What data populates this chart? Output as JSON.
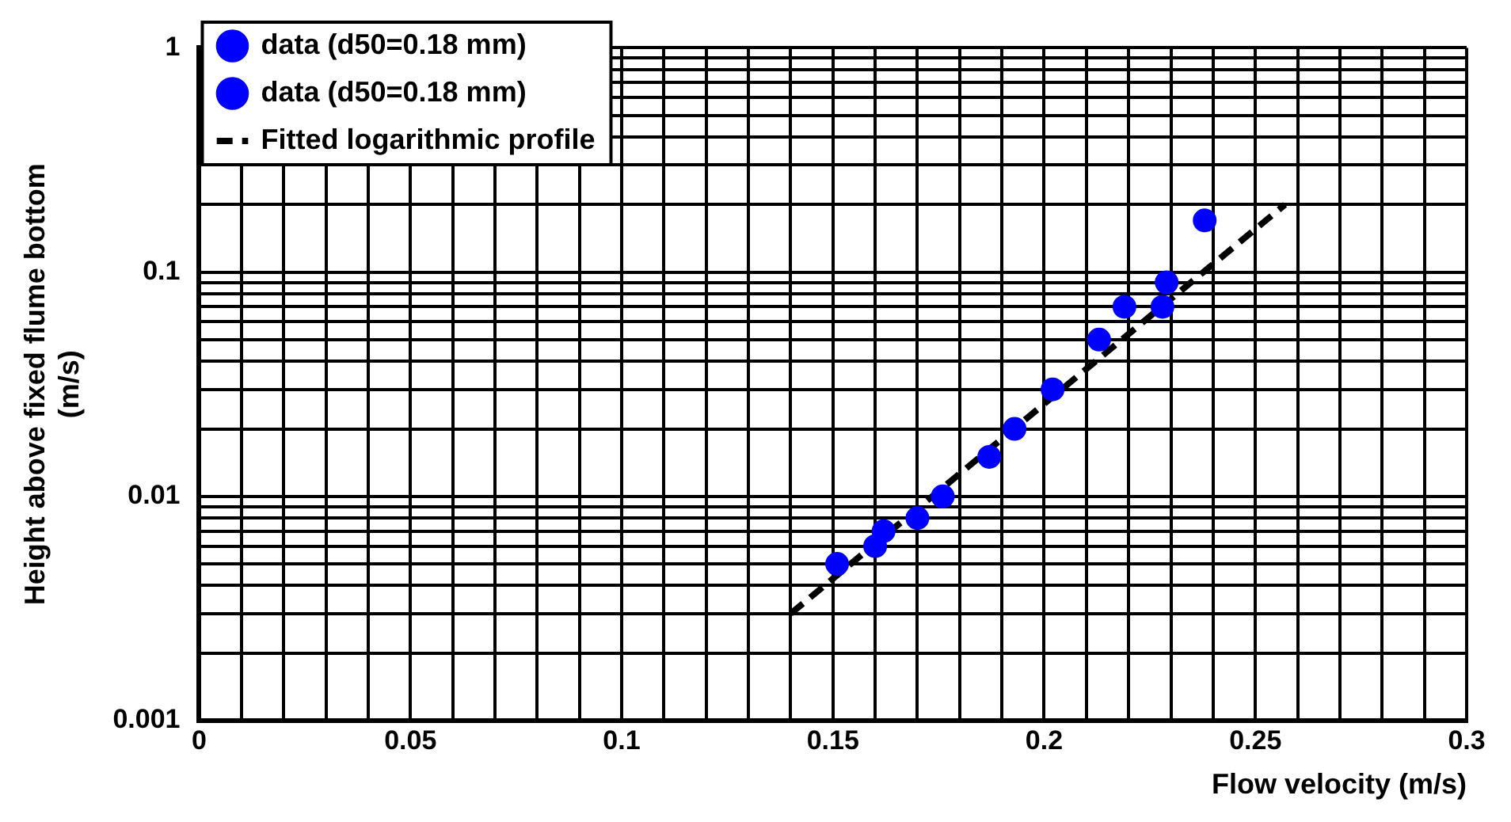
{
  "chart_data": {
    "type": "scatter",
    "xlabel": "Flow velocity (m/s)",
    "ylabel": "Height above fixed flume bottom (m/s)",
    "xlim": [
      0,
      0.3
    ],
    "ylim": [
      0.001,
      1
    ],
    "log": "y",
    "grid": true,
    "legend": "top left",
    "marker": "circle",
    "xticks": [
      0,
      {
        "value": 0.01,
        "label": null
      },
      {
        "value": 0.02,
        "label": null
      },
      {
        "value": 0.03,
        "label": null
      },
      {
        "value": 0.04,
        "label": null
      },
      0.05,
      {
        "value": 0.06,
        "label": null
      },
      {
        "value": 0.07,
        "label": null
      },
      {
        "value": 0.08,
        "label": null
      },
      {
        "value": 0.09,
        "label": null
      },
      0.1,
      {
        "value": 0.11,
        "label": null
      },
      {
        "value": 0.12,
        "label": null
      },
      {
        "value": 0.13,
        "label": null
      },
      {
        "value": 0.14,
        "label": null
      },
      0.15,
      {
        "value": 0.16,
        "label": null
      },
      {
        "value": 0.17,
        "label": null
      },
      {
        "value": 0.18,
        "label": null
      },
      {
        "value": 0.19,
        "label": null
      },
      0.2,
      {
        "value": 0.21,
        "label": null
      },
      {
        "value": 0.22,
        "label": null
      },
      {
        "value": 0.23,
        "label": null
      },
      {
        "value": 0.24,
        "label": null
      },
      0.25,
      {
        "value": 0.26,
        "label": null
      },
      {
        "value": 0.27,
        "label": null
      },
      {
        "value": 0.28,
        "label": null
      },
      {
        "value": 0.29,
        "label": null
      },
      0.3
    ],
    "yticks": [
      0.001,
      {
        "value": 0.002,
        "label": null
      },
      {
        "value": 0.003,
        "label": null
      },
      {
        "value": 0.004,
        "label": null
      },
      {
        "value": 0.005,
        "label": null
      },
      {
        "value": 0.006,
        "label": null
      },
      {
        "value": 0.007,
        "label": null
      },
      {
        "value": 0.008,
        "label": null
      },
      {
        "value": 0.009,
        "label": null
      },
      0.01,
      {
        "value": 0.02,
        "label": null
      },
      {
        "value": 0.03,
        "label": null
      },
      {
        "value": 0.04,
        "label": null
      },
      {
        "value": 0.05,
        "label": null
      },
      {
        "value": 0.06,
        "label": null
      },
      {
        "value": 0.07,
        "label": null
      },
      {
        "value": 0.08,
        "label": null
      },
      {
        "value": 0.09,
        "label": null
      },
      0.1,
      {
        "value": 0.2,
        "label": null
      },
      {
        "value": 0.3,
        "label": null
      },
      {
        "value": 0.4,
        "label": null
      },
      {
        "value": 0.5,
        "label": null
      },
      {
        "value": 0.6,
        "label": null
      },
      {
        "value": 0.7,
        "label": null
      },
      {
        "value": 0.8,
        "label": null
      },
      {
        "value": 0.9,
        "label": null
      },
      1
    ],
    "series": [
      {
        "name": "data (d50=0.18 mm)",
        "color": "#0000ff",
        "x": [
          0.151,
          0.16,
          0.162,
          0.17,
          0.176,
          0.187,
          0.193,
          0.202,
          0.228
        ],
        "values": [
          0.005,
          0.006,
          0.007,
          0.008,
          0.01,
          0.015,
          0.02,
          0.03,
          0.07
        ]
      },
      {
        "name": "data (d50=0.18 mm)",
        "color": "#0000ff",
        "x": [
          0.213,
          0.219,
          0.229,
          0.238
        ],
        "values": [
          0.05,
          0.07,
          0.09,
          0.17
        ]
      },
      {
        "name": "Fitted logarithmic profile",
        "type": "line",
        "color": "#000000",
        "marker": "none",
        "line_style": "dashed",
        "x": [
          0.14,
          0.257
        ],
        "values": [
          0.003,
          0.2
        ]
      }
    ]
  }
}
